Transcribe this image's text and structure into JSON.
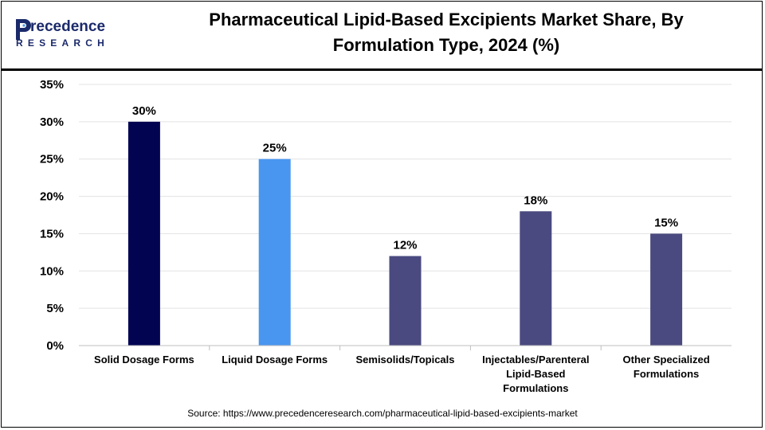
{
  "header": {
    "title_line1": "Pharmaceutical Lipid-Based Excipients Market Share, By",
    "title_line2": "Formulation Type, 2024 (%)",
    "logo_text": "Precedence",
    "logo_subtext": "RESEARCH"
  },
  "colors": {
    "solid": "#020452",
    "liquid": "#4896f0",
    "other": "#4a4a80",
    "logo_blue": "#1b2a6b"
  },
  "chart_data": {
    "type": "bar",
    "categories": [
      [
        "Solid Dosage Forms"
      ],
      [
        "Liquid Dosage Forms"
      ],
      [
        "Semisolids/Topicals"
      ],
      [
        "Injectables/Parenteral",
        "Lipid-Based",
        "Formulations"
      ],
      [
        "Other Specialized",
        "Formulations"
      ]
    ],
    "values": [
      30,
      25,
      12,
      18,
      15
    ],
    "data_labels": [
      "30%",
      "25%",
      "12%",
      "18%",
      "15%"
    ],
    "bar_colors": [
      "#020452",
      "#4896f0",
      "#4a4a80",
      "#4a4a80",
      "#4a4a80"
    ],
    "ylim": [
      0,
      35
    ],
    "yticks": [
      0,
      5,
      10,
      15,
      20,
      25,
      30,
      35
    ],
    "ytick_labels": [
      "0%",
      "5%",
      "10%",
      "15%",
      "20%",
      "25%",
      "30%",
      "35%"
    ],
    "grid": true,
    "legend": "none",
    "xlabel": "",
    "ylabel": ""
  },
  "source": "Source: https://www.precedenceresearch.com/pharmaceutical-lipid-based-excipients-market"
}
